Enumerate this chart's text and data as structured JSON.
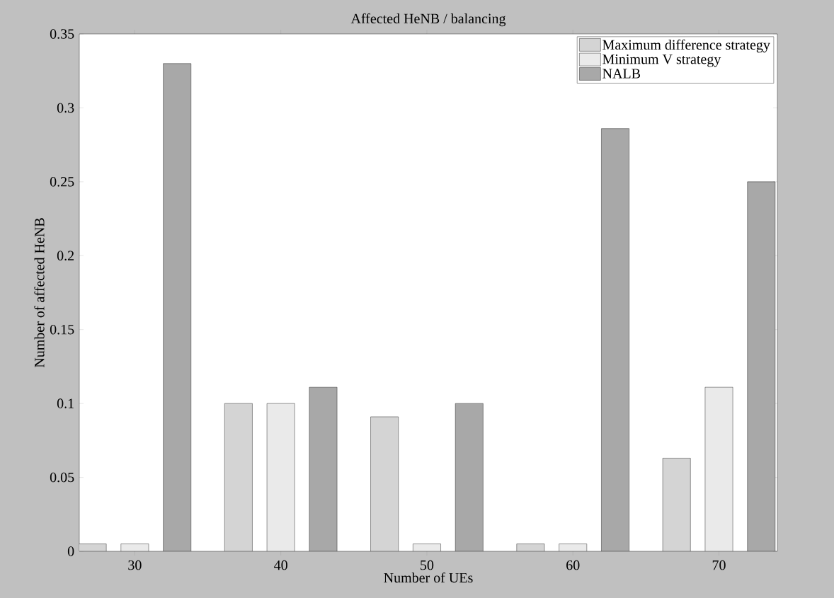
{
  "chart_data": {
    "type": "bar",
    "title": "Affected HeNB / balancing",
    "xlabel": "Number of UEs",
    "ylabel": "Number of affected HeNB",
    "categories": [
      "30",
      "40",
      "50",
      "60",
      "70"
    ],
    "series": [
      {
        "name": "Maximum difference strategy",
        "color": "#d4d4d4",
        "values": [
          0.005,
          0.1,
          0.091,
          0.005,
          0.063
        ]
      },
      {
        "name": "Minimum V strategy",
        "color": "#eaeaea",
        "values": [
          0.005,
          0.1,
          0.005,
          0.005,
          0.111
        ]
      },
      {
        "name": "NALB",
        "color": "#a8a8a8",
        "values": [
          0.33,
          0.111,
          0.1,
          0.286,
          0.25
        ]
      }
    ],
    "ylim": [
      0,
      0.35
    ],
    "yticks": [
      0,
      0.05,
      0.1,
      0.15,
      0.2,
      0.25,
      0.3,
      0.35
    ],
    "grid": false,
    "legend": "top right"
  }
}
